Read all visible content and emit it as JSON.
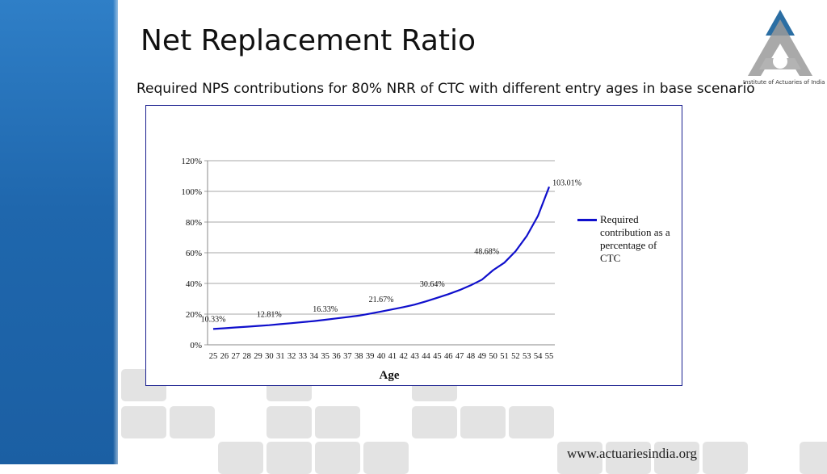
{
  "slide": {
    "title": "Net Replacement Ratio",
    "subtitle": "Required NPS contributions for 80% NRR of CTC with different entry ages in base scenario",
    "logo_text": "Institute of Actuaries of India",
    "footer_url": "www.actuariesindia.org"
  },
  "colors": {
    "sidebar": "#1f67ad",
    "line": "#0f0fcc",
    "frame": "#1a1f8f",
    "logo_blue": "#2b6ea3",
    "logo_grey": "#9a9a9a"
  },
  "chart_data": {
    "type": "line",
    "title": "",
    "xlabel": "Age",
    "ylabel": "",
    "x": [
      25,
      26,
      27,
      28,
      29,
      30,
      31,
      32,
      33,
      34,
      35,
      36,
      37,
      38,
      39,
      40,
      41,
      42,
      43,
      44,
      45,
      46,
      47,
      48,
      49,
      50,
      51,
      52,
      53,
      54,
      55
    ],
    "ylim": [
      0,
      120
    ],
    "yticks": [
      "0%",
      "20%",
      "40%",
      "60%",
      "80%",
      "100%",
      "120%"
    ],
    "grid": true,
    "legend_position": "right",
    "series": [
      {
        "name": "Required contribution as a percentage of CTC",
        "values": [
          10.33,
          10.8,
          11.3,
          11.8,
          12.3,
          12.81,
          13.5,
          14.1,
          14.8,
          15.5,
          16.33,
          17.2,
          18.1,
          19.0,
          20.3,
          21.67,
          23.1,
          24.6,
          26.2,
          28.3,
          30.64,
          33.0,
          35.7,
          38.8,
          42.5,
          48.68,
          53.5,
          61.0,
          71.0,
          84.0,
          103.01
        ],
        "labels": [
          {
            "age": 25,
            "text": "10.33%"
          },
          {
            "age": 30,
            "text": "12.81%"
          },
          {
            "age": 35,
            "text": "16.33%"
          },
          {
            "age": 40,
            "text": "21.67%"
          },
          {
            "age": 45,
            "text": "30.64%"
          },
          {
            "age": 50,
            "text": "48.68%"
          },
          {
            "age": 55,
            "text": "103.01%"
          }
        ]
      }
    ]
  }
}
